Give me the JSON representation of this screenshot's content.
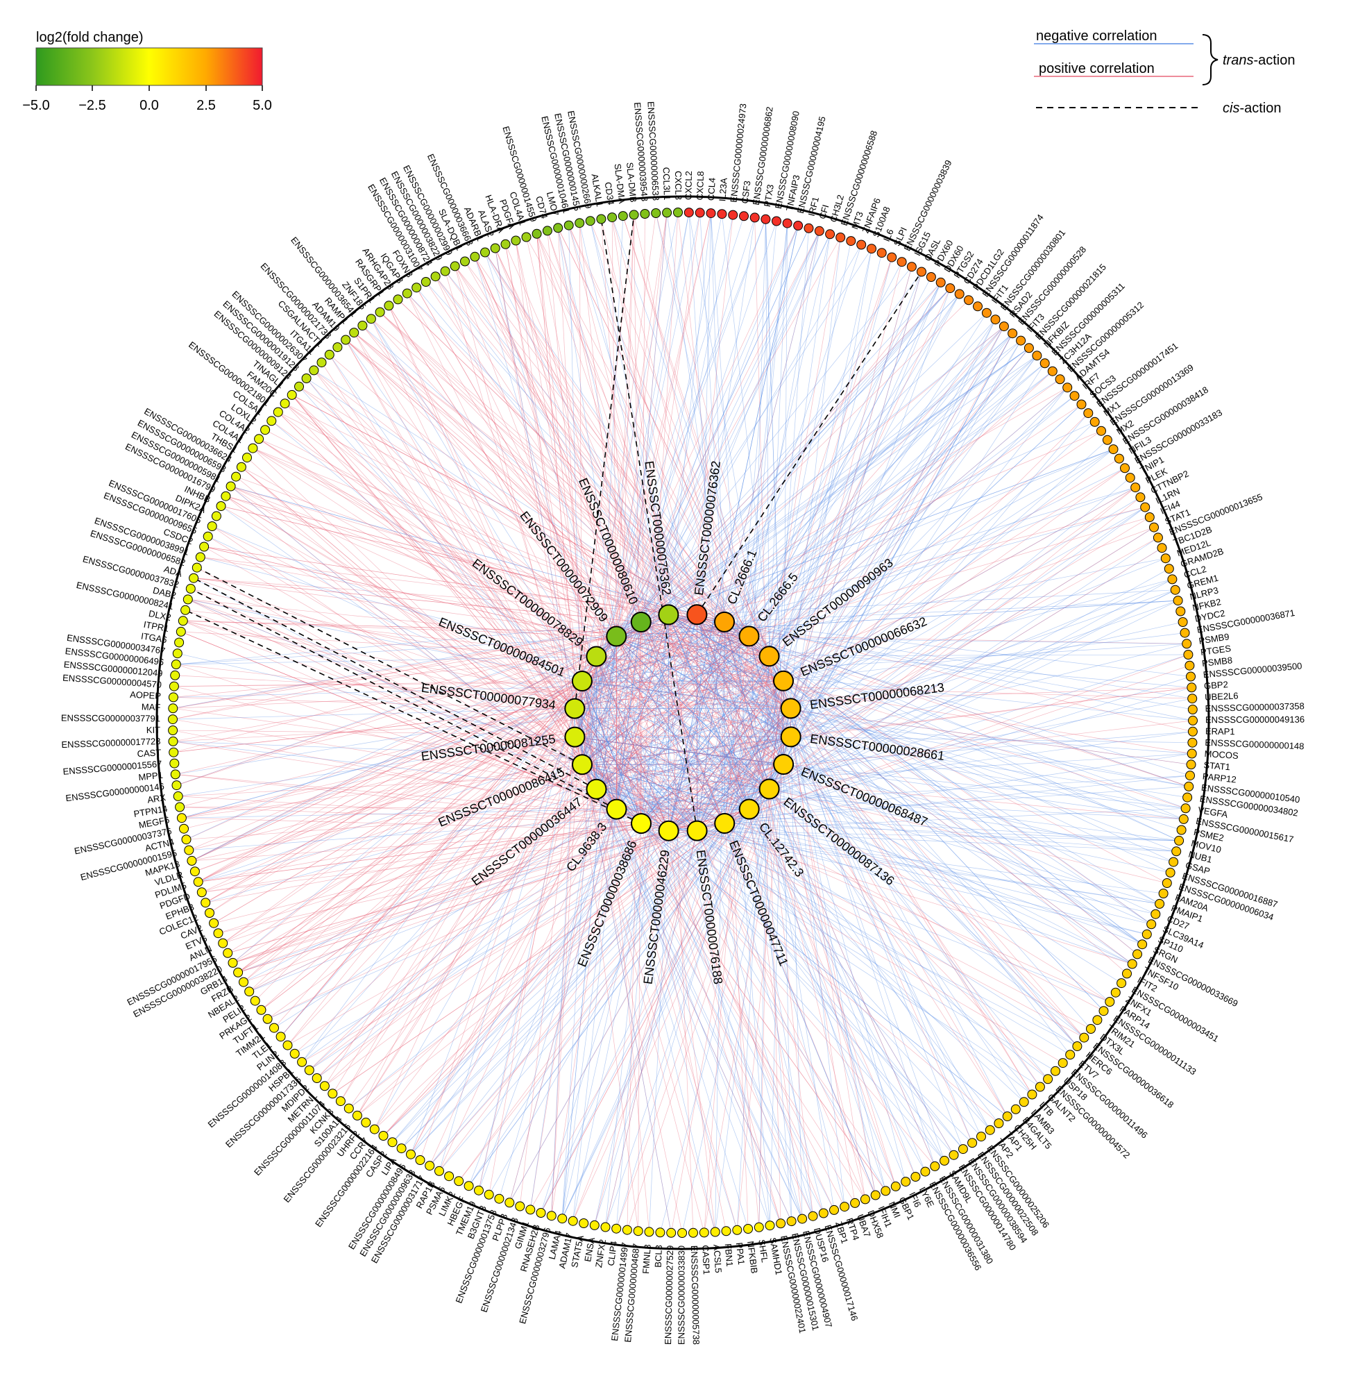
{
  "colorbar": {
    "title": "log2(fold change)",
    "min": -5.0,
    "max": 5.0,
    "ticks": [
      "−5.0",
      "−2.5",
      "0.0",
      "2.5",
      "5.0"
    ],
    "gradient": [
      "#2e9a1e",
      "#8cc61a",
      "#ffff00",
      "#ffaa00",
      "#f11a30"
    ]
  },
  "legend": {
    "negative": "negative correlation",
    "positive": "positive correlation",
    "negative_color": "#5a8ee6",
    "positive_color": "#e8667a",
    "trans_italic": "trans",
    "trans_suffix": "-action",
    "cis_italic": "cis",
    "cis_suffix": "-action"
  },
  "inner_nodes": [
    {
      "label": "ENSSSCT00000076362",
      "fc": 4.0
    },
    {
      "label": "CL.2666.1",
      "fc": 2.6
    },
    {
      "label": "CL.2666.5",
      "fc": 2.4
    },
    {
      "label": "ENSSSCT00000090963",
      "fc": 2.2
    },
    {
      "label": "ENSSSCT00000066632",
      "fc": 2.0
    },
    {
      "label": "ENSSSCT00000068213",
      "fc": 1.8
    },
    {
      "label": "ENSSSCT00000028661",
      "fc": 1.6
    },
    {
      "label": "ENSSSCT00000068487",
      "fc": 1.4
    },
    {
      "label": "ENSSSCT00000087136",
      "fc": 1.2
    },
    {
      "label": "CL.12742.3",
      "fc": 1.0
    },
    {
      "label": "ENSSSCT00000047711",
      "fc": 0.8
    },
    {
      "label": "ENSSSCT00000076188",
      "fc": 0.5
    },
    {
      "label": "ENSSSCT00000046229",
      "fc": 0.3
    },
    {
      "label": "ENSSSCT00000038686",
      "fc": 0.1
    },
    {
      "label": "CL.9638.3",
      "fc": -0.2
    },
    {
      "label": "ENSSSCT00000036447",
      "fc": -0.4
    },
    {
      "label": "ENSSSCT00000086415",
      "fc": -0.6
    },
    {
      "label": "ENSSSCT00000081255",
      "fc": -0.8
    },
    {
      "label": "ENSSSCT00000077934",
      "fc": -1.0
    },
    {
      "label": "ENSSSCT00000084501",
      "fc": -1.2
    },
    {
      "label": "ENSSSCT00000078829",
      "fc": -1.5
    },
    {
      "label": "ENSSSCT00000072909",
      "fc": -3.0
    },
    {
      "label": "ENSSSCT00000080610",
      "fc": -3.5
    },
    {
      "label": "ENSSSCT00000075362",
      "fc": -2.0
    }
  ],
  "outer_labels": [
    "CXCL2",
    "CXCL8",
    "CCL4",
    "IL23A",
    "ENSSSCG00000024973",
    "CSF3",
    "ENSSSCG00000006862",
    "PTX3",
    "ENSSSCG00000008090",
    "TNFAIP3",
    "ENSSSCG00000004195",
    "IRF1",
    "CFI",
    "CH3L2",
    "ENSSSCG00000006588",
    "MT3",
    "ZNFAIP6",
    "S100A8",
    "IL6",
    "SLPI",
    "ENSSSCG00000003839",
    "ISG15",
    "OASL",
    "PDX60",
    "DDX60",
    "PTGS2",
    "CD274",
    "PDCD1LG2",
    "ENSSSCG00000011874",
    "IFIT1",
    "ENSSSCG00000030801",
    "RSAD2",
    "ENSSSCG00000000528",
    "IFIT3",
    "ENSSSCG00000021815",
    "NFKBIZ",
    "ENSSSCG00000005311",
    "ZC3H12A",
    "ENSSSCG00000005312",
    "ADAMTS4",
    "IRF7",
    "SOCS3",
    "ENSSSCG00000017451",
    "MX1",
    "ENSSSCG00000013369",
    "MX2",
    "ENSSSCG00000038418",
    "NFIL3",
    "ENSSSCG00000033183",
    "TNIP1",
    "PLEK",
    "CTTNBP2",
    "IL1RN",
    "IFI44",
    "STAT1",
    "ENSSSCG00000013655",
    "TBC1D2B",
    "MED12L",
    "GRAMD2B",
    "CCL2",
    "GREM1",
    "NLRP3",
    "NFKB2",
    "DYDC2",
    "ENSSSCG00000036871",
    "PSMB9",
    "PTGES",
    "PSMB8",
    "ENSSSCG00000039500",
    "GBP2",
    "UBE2L6",
    "ENSSSCG00000037358",
    "ENSSSCG00000049136",
    "ERAP1",
    "ENSSSCG00000000148",
    "MOCOS",
    "STAT1",
    "PARP12",
    "ENSSSCG00000010540",
    "ENSSSCG00000034802",
    "VEGFA",
    "ENSSSCG00000015617",
    "PSME2",
    "MOV10",
    "NUB1",
    "GSAP",
    "ENSSSCG00000016887",
    "ENSSSCG00000006034",
    "FAM20A",
    "PMAIP1",
    "CD27",
    "SLC39A14",
    "SP110",
    "SRGN",
    "ENSSSCG00000033669",
    "TNFSF10",
    "IFIT2",
    "ENSSSCG00000003451",
    "ZNFX1",
    "PARP14",
    "ENSSSCG00000011133",
    "TRIM21",
    "DTX3L",
    "ENSSSCG00000036618",
    "HERC6",
    "ETV7",
    "ENSSSCG00000011496",
    "USP18",
    "ENSSSCG00000004572",
    "GALNT2",
    "LTB",
    "LAMB3",
    "B4GALT5",
    "CH25H",
    "TAP1",
    "TAP2",
    "ENSSSCG00000025206",
    "ENSSSCG00000022508",
    "ENSSSCG00000038594",
    "ENSSSCG00000014780",
    "SAMD9L",
    "ENSSSCG00000031380",
    "ENSSSCG00000036556",
    "LY6E",
    "IFI6",
    "GBP1",
    "NMI",
    "IFIH1",
    "DHX58",
    "UBA7",
    "RTP4",
    "ZBP1",
    "ENSSSCG00000017146",
    "DUSP16",
    "ENSSSCG00000004907",
    "ENSSSCG00000015301",
    "ENSSSCG00000022401",
    "SAMHD1",
    "SHFL",
    "NFKBIB",
    "PPA1",
    "FBN1",
    "ACSL5",
    "CASP1",
    "ENSSSCG00000005738",
    "ENSSSCG00000033830",
    "ENSSSCG00000027529",
    "BCL3",
    "FMNL3",
    "ENSSSCG00000004687",
    "ENSSSCG00000014997",
    "CLIP4",
    "ZNFX2",
    "ENSA",
    "STAT5A",
    "ADAM17",
    "LAMA4",
    "ENSSSCG00000032796",
    "RNASEH2B",
    "GINM1",
    "ENSSSCG00000021343",
    "PLPP3",
    "ENSSSCG00000013758",
    "B3GNT3",
    "TMEM19",
    "HBEGF",
    "LIMK2",
    "PSMA6",
    "RAP1B",
    "ENSSSCG00000031717",
    "ENSSSCG00000009633",
    "ENSSSCG00000008496",
    "LIPA",
    "CASP2",
    "ENSSSCG00000022164",
    "CCR7",
    "UHRF2",
    "ENSSSCG00000023216",
    "S100A14",
    "KCNK3",
    "ENSSSCG00000011074",
    "METRNL",
    "MDIPD2",
    "ENSSSCG00000017336",
    "HSPB1",
    "ENSSSCG00000014083",
    "PLIN2",
    "TLE1",
    "TIMM21",
    "TUFT1",
    "PRKAG2",
    "PELI2",
    "NBEAL2",
    "FRZB",
    "GRB14",
    "ENSSSCG00000038220",
    "ENSSSCG00000017956",
    "ANLN",
    "ETV6",
    "CAV2",
    "COLEC12",
    "EPHB3",
    "PDGFD",
    "PDLIM5",
    "VLDLR",
    "MAPK13",
    "ENSSSCG00000001595",
    "ACTN4",
    "ENSSSCG00000037376",
    "MEGF6",
    "PTPN14",
    "ARX",
    "ENSSSCG00000000146",
    "MPP1",
    "ENSSSCG00000015567",
    "CAST",
    "ENSSSCG00000017728",
    "KIT",
    "ENSSSCG00000037791",
    "MAF",
    "AOPEP",
    "ENSSSCG00000004570",
    "ENSSSCG00000012049",
    "ENSSSCG00000006496",
    "ENSSSCG00000034767",
    "ITGA6",
    "ITPR1",
    "DLX2",
    "ENSSSCG00000008241",
    "DAB2",
    "ENSSSCG00000037832",
    "ADA",
    "ENSSSCG00000006582",
    "ENSSSCG00000038991",
    "CSDC2",
    "ENSSSCG00000009655",
    "ENSSSCG00000017605",
    "DIPK2A",
    "INHBB",
    "ENSSSCG00000016799",
    "ENSSSCG00000005981",
    "ENSSSCG00000006593",
    "ENSSSCG00000036624",
    "THBS1",
    "COL4A1",
    "COL4A2",
    "LOXL2",
    "COL5A1",
    "ENSSSCG00000021801",
    "FAM20C",
    "TINAGL1",
    "ENSSSCG00000009124",
    "ENSSSCG00000019128",
    "ENSSSCG00000026307",
    "ITGA11",
    "CSGALNACT1",
    "ENSSSCG00000021733",
    "ADAM19",
    "RAMP1",
    "ENSSSCG00000036541",
    "ZNF185",
    "S1PR1",
    "RASGRP1",
    "ARHGAP23",
    "IQGAP3",
    "FOXN3",
    "ENSSSCG00000031007",
    "ENSSSCG00000008724",
    "ENSSSCG00000038229",
    "ENSSSCG00000002999",
    "SLA-DQB1",
    "ENSSSCG00000036663",
    "ADARB1",
    "ALAS2",
    "HLA-DRA",
    "PDGFA",
    "COL4A1",
    "ENSSSCG00000014559",
    "CD74",
    "LMO7",
    "ENSSSCG00000010461",
    "ENSSSCG00000001455",
    "ENSSSCG00000002669",
    "ALKAL1",
    "CD34",
    "SLA-DMA",
    "SLA-DMB",
    "ENSSSCG00000039548",
    "ENSSSCG00000006538",
    "CCL3L1",
    "CXCL3"
  ]
}
